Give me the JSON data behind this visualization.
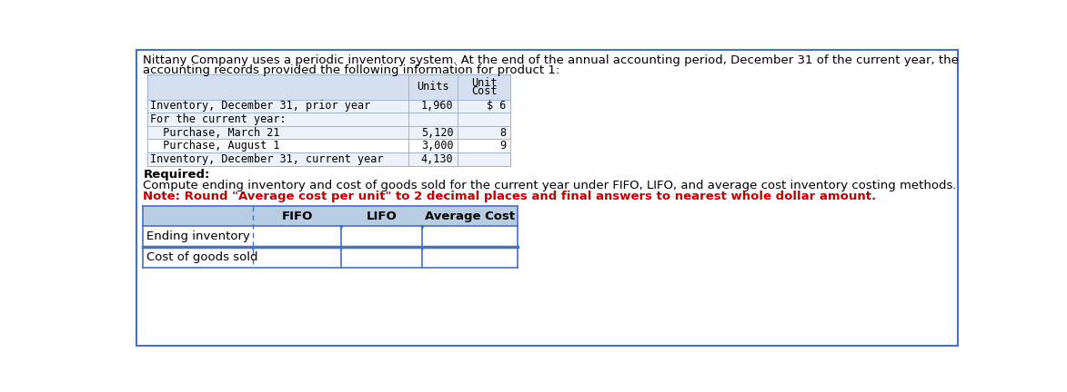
{
  "bg_color": "#ffffff",
  "border_color": "#4472c4",
  "header_text_1": "Nittany Company uses a periodic inventory system. At the end of the annual accounting period, December 31 of the current year, the",
  "header_text_2": "accounting records provided the following information for product 1:",
  "top_table": {
    "header_bg": "#d6dff0",
    "rows": [
      [
        "Inventory, December 31, prior year",
        "1,960",
        "$ 6"
      ],
      [
        "For the current year:",
        "",
        ""
      ],
      [
        "  Purchase, March 21",
        "5,120",
        "8"
      ],
      [
        "  Purchase, August 1",
        "3,000",
        "9"
      ],
      [
        "Inventory, December 31, current year",
        "4,130",
        ""
      ]
    ],
    "row_bgs": [
      "#edf1f9",
      "#edf1f9",
      "#edf1f9",
      "#ffffff",
      "#edf1f9"
    ],
    "font": "monospace"
  },
  "required_label": "Required:",
  "instruction_text": "Compute ending inventory and cost of goods sold for the current year under FIFO, LIFO, and average cost inventory costing methods.",
  "note_text": "Note: Round \"Average cost per unit\" to 2 decimal places and final answers to nearest whole dollar amount.",
  "note_color": "#c00000",
  "bottom_table": {
    "col_headers": [
      "",
      "FIFO",
      "LIFO",
      "Average Cost"
    ],
    "rows": [
      [
        "Ending inventory",
        "",
        "",
        ""
      ],
      [
        "Cost of goods sold",
        "",
        "",
        ""
      ]
    ],
    "header_bg": "#b8cce4",
    "separator_color": "#4472c4"
  }
}
